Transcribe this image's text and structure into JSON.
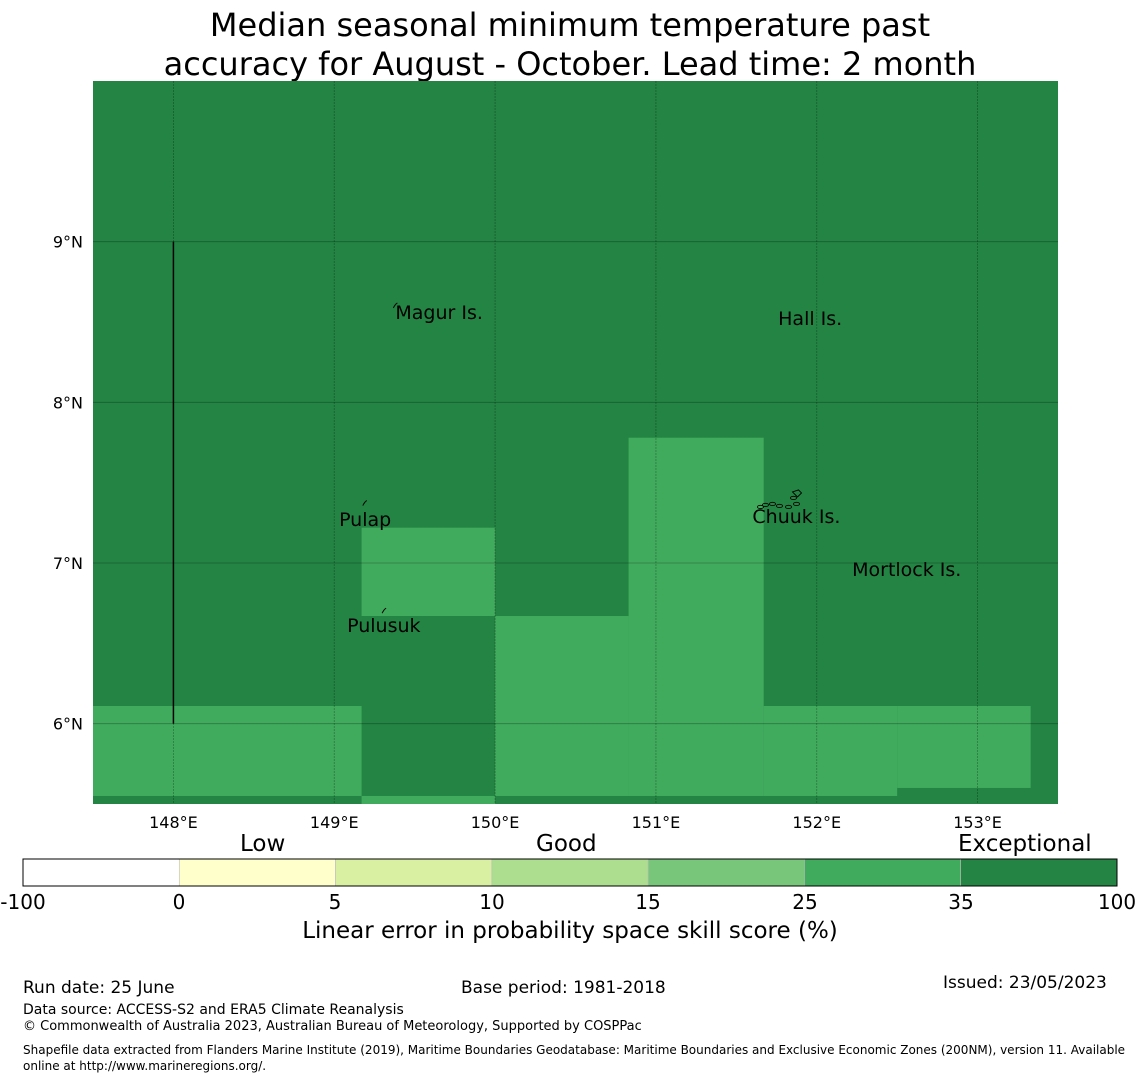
{
  "title": {
    "line1": "Median seasonal minimum temperature past",
    "line2": "accuracy for August - October. Lead time: 2 month"
  },
  "map": {
    "lon_range": [
      147.5,
      153.5
    ],
    "lat_range": [
      5.5,
      10.0
    ],
    "lon_ticks": [
      148,
      149,
      150,
      151,
      152,
      153
    ],
    "lon_tick_labels": [
      "148°E",
      "149°E",
      "150°E",
      "151°E",
      "152°E",
      "153°E"
    ],
    "lat_ticks": [
      6,
      7,
      8,
      9
    ],
    "lat_tick_labels": [
      "6°N",
      "7°N",
      "8°N",
      "9°N"
    ],
    "background_category": "35 to 100",
    "background_color": "#238443",
    "patch_color": "#41ab5d",
    "patches_lonlat": [
      {
        "lon": [
          149.17,
          150.0
        ],
        "lat": [
          6.67,
          7.22
        ],
        "category": "25 to 35"
      },
      {
        "lon": [
          150.0,
          150.83
        ],
        "lat": [
          5.55,
          6.67
        ],
        "category": "25 to 35"
      },
      {
        "lon": [
          150.83,
          151.67
        ],
        "lat": [
          5.55,
          7.78
        ],
        "category": "25 to 35"
      },
      {
        "lon": [
          147.5,
          149.17
        ],
        "lat": [
          5.55,
          6.11
        ],
        "category": "25 to 35"
      },
      {
        "lon": [
          151.67,
          152.5
        ],
        "lat": [
          5.55,
          6.11
        ],
        "category": "25 to 35"
      },
      {
        "lon": [
          152.5,
          153.33
        ],
        "lat": [
          5.6,
          6.11
        ],
        "category": "25 to 35"
      },
      {
        "lon": [
          149.17,
          150.0
        ],
        "lat": [
          5.5,
          5.55
        ],
        "category": "25 to 35"
      }
    ],
    "boundary_line": {
      "lon": 148.0,
      "lat": [
        6.0,
        9.0
      ]
    },
    "place_labels": [
      {
        "name": "Magur Is.",
        "lon": 149.38,
        "lat": 8.52
      },
      {
        "name": "Hall Is.",
        "lon": 151.76,
        "lat": 8.48
      },
      {
        "name": "Pulap",
        "lon": 149.03,
        "lat": 7.23
      },
      {
        "name": "Chuuk Is.",
        "lon": 151.6,
        "lat": 7.25
      },
      {
        "name": "Mortlock Is.",
        "lon": 152.22,
        "lat": 6.92
      },
      {
        "name": "Pulusuk",
        "lon": 149.08,
        "lat": 6.57
      }
    ]
  },
  "legend": {
    "categories": [
      "Low",
      "Good",
      "Exceptional"
    ],
    "bins": [
      {
        "range": "-100 to 0",
        "color": "#ffffff"
      },
      {
        "range": "0 to 5",
        "color": "#ffffcc"
      },
      {
        "range": "5 to 10",
        "color": "#d9f0a3"
      },
      {
        "range": "10 to 15",
        "color": "#addd8e"
      },
      {
        "range": "15 to 25",
        "color": "#78c679"
      },
      {
        "range": "25 to 35",
        "color": "#41ab5d"
      },
      {
        "range": "35 to 100",
        "color": "#238443"
      }
    ],
    "tick_labels": [
      "-100",
      "0",
      "5",
      "10",
      "15",
      "25",
      "35",
      "100"
    ],
    "axis_label": "Linear error in probability space skill score (%)"
  },
  "footer": {
    "run_date": "Run date: 25 June",
    "base_period": "Base period: 1981-2018",
    "issued": "Issued: 23/05/2023",
    "data_source": "Data source: ACCESS-S2 and ERA5 Climate Reanalysis",
    "copyright": "© Commonwealth of Australia 2023, Australian Bureau of Meteorology, Supported by COSPPac",
    "shapefile": "Shapefile data extracted from Flanders Marine Institute (2019), Maritime Boundaries Geodatabase: Maritime Boundaries and Exclusive Economic Zones (200NM), version 11. Available online at http://www.marineregions.org/."
  }
}
